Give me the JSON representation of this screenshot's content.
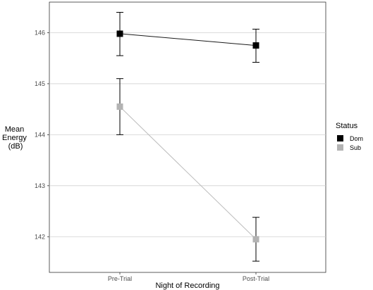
{
  "chart_data": {
    "type": "line",
    "title": "",
    "xlabel": "Night of Recording",
    "ylabel_lines": [
      "Mean",
      "Energy",
      "(dB)"
    ],
    "categories": [
      "Pre-Trial",
      "Post-Trial"
    ],
    "ylim": [
      141.3,
      146.6
    ],
    "yticks": [
      142,
      143,
      144,
      145,
      146
    ],
    "grid": true,
    "legend": {
      "title": "Status",
      "position": "right"
    },
    "series": [
      {
        "name": "Dom",
        "color": "#000000",
        "values": [
          145.98,
          145.75
        ],
        "err_low": [
          145.55,
          145.42
        ],
        "err_high": [
          146.4,
          146.07
        ]
      },
      {
        "name": "Sub",
        "color": "#b3b3b3",
        "values": [
          144.55,
          141.95
        ],
        "err_low": [
          144.0,
          141.52
        ],
        "err_high": [
          145.1,
          142.38
        ]
      }
    ]
  }
}
